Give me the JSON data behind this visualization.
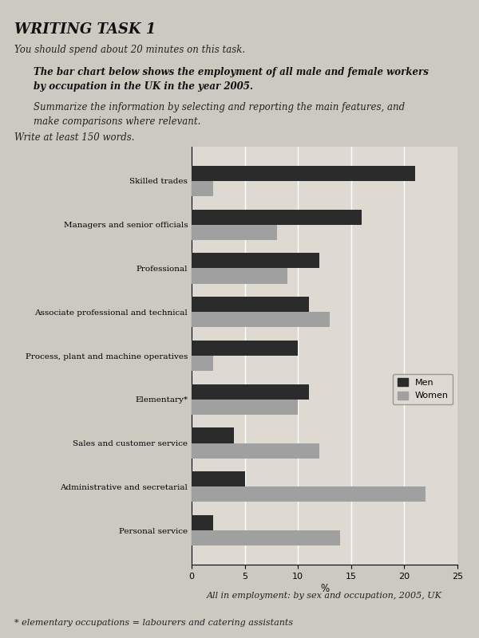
{
  "categories": [
    "Skilled trades",
    "Managers and senior officials",
    "Professional",
    "Associate professional and technical",
    "Process, plant and machine operatives",
    "Elementary*",
    "Sales and customer service",
    "Administrative and secretarial",
    "Personal service"
  ],
  "men": [
    21,
    16,
    12,
    11,
    10,
    11,
    4,
    5,
    2
  ],
  "women": [
    2,
    8,
    9,
    13,
    2,
    10,
    12,
    22,
    14
  ],
  "men_color": "#2b2b2b",
  "women_color": "#a0a0a0",
  "xlabel": "%",
  "xlabel2": "All in employment: by sex and occupation, 2005, UK",
  "footnote": "* elementary occupations = labourers and catering assistants",
  "xlim": [
    0,
    25
  ],
  "xticks": [
    0,
    5,
    10,
    15,
    20,
    25
  ],
  "title": "WRITING TASK 1",
  "subtitle1": "You should spend about 20 minutes on this task.",
  "description1": "The bar chart below shows the employment of all male and female workers",
  "description2": "by occupation in the UK in the year 2005.",
  "instruction1": "Summarize the information by selecting and reporting the main features, and",
  "instruction2": "make comparisons where relevant.",
  "instruction3": "Write at least 150 words.",
  "legend_men": "Men",
  "legend_women": "Women",
  "bar_height": 0.35,
  "bg_color": "#ccc9c0",
  "chart_bg": "#dedad2",
  "figsize": [
    6.0,
    8.0
  ]
}
